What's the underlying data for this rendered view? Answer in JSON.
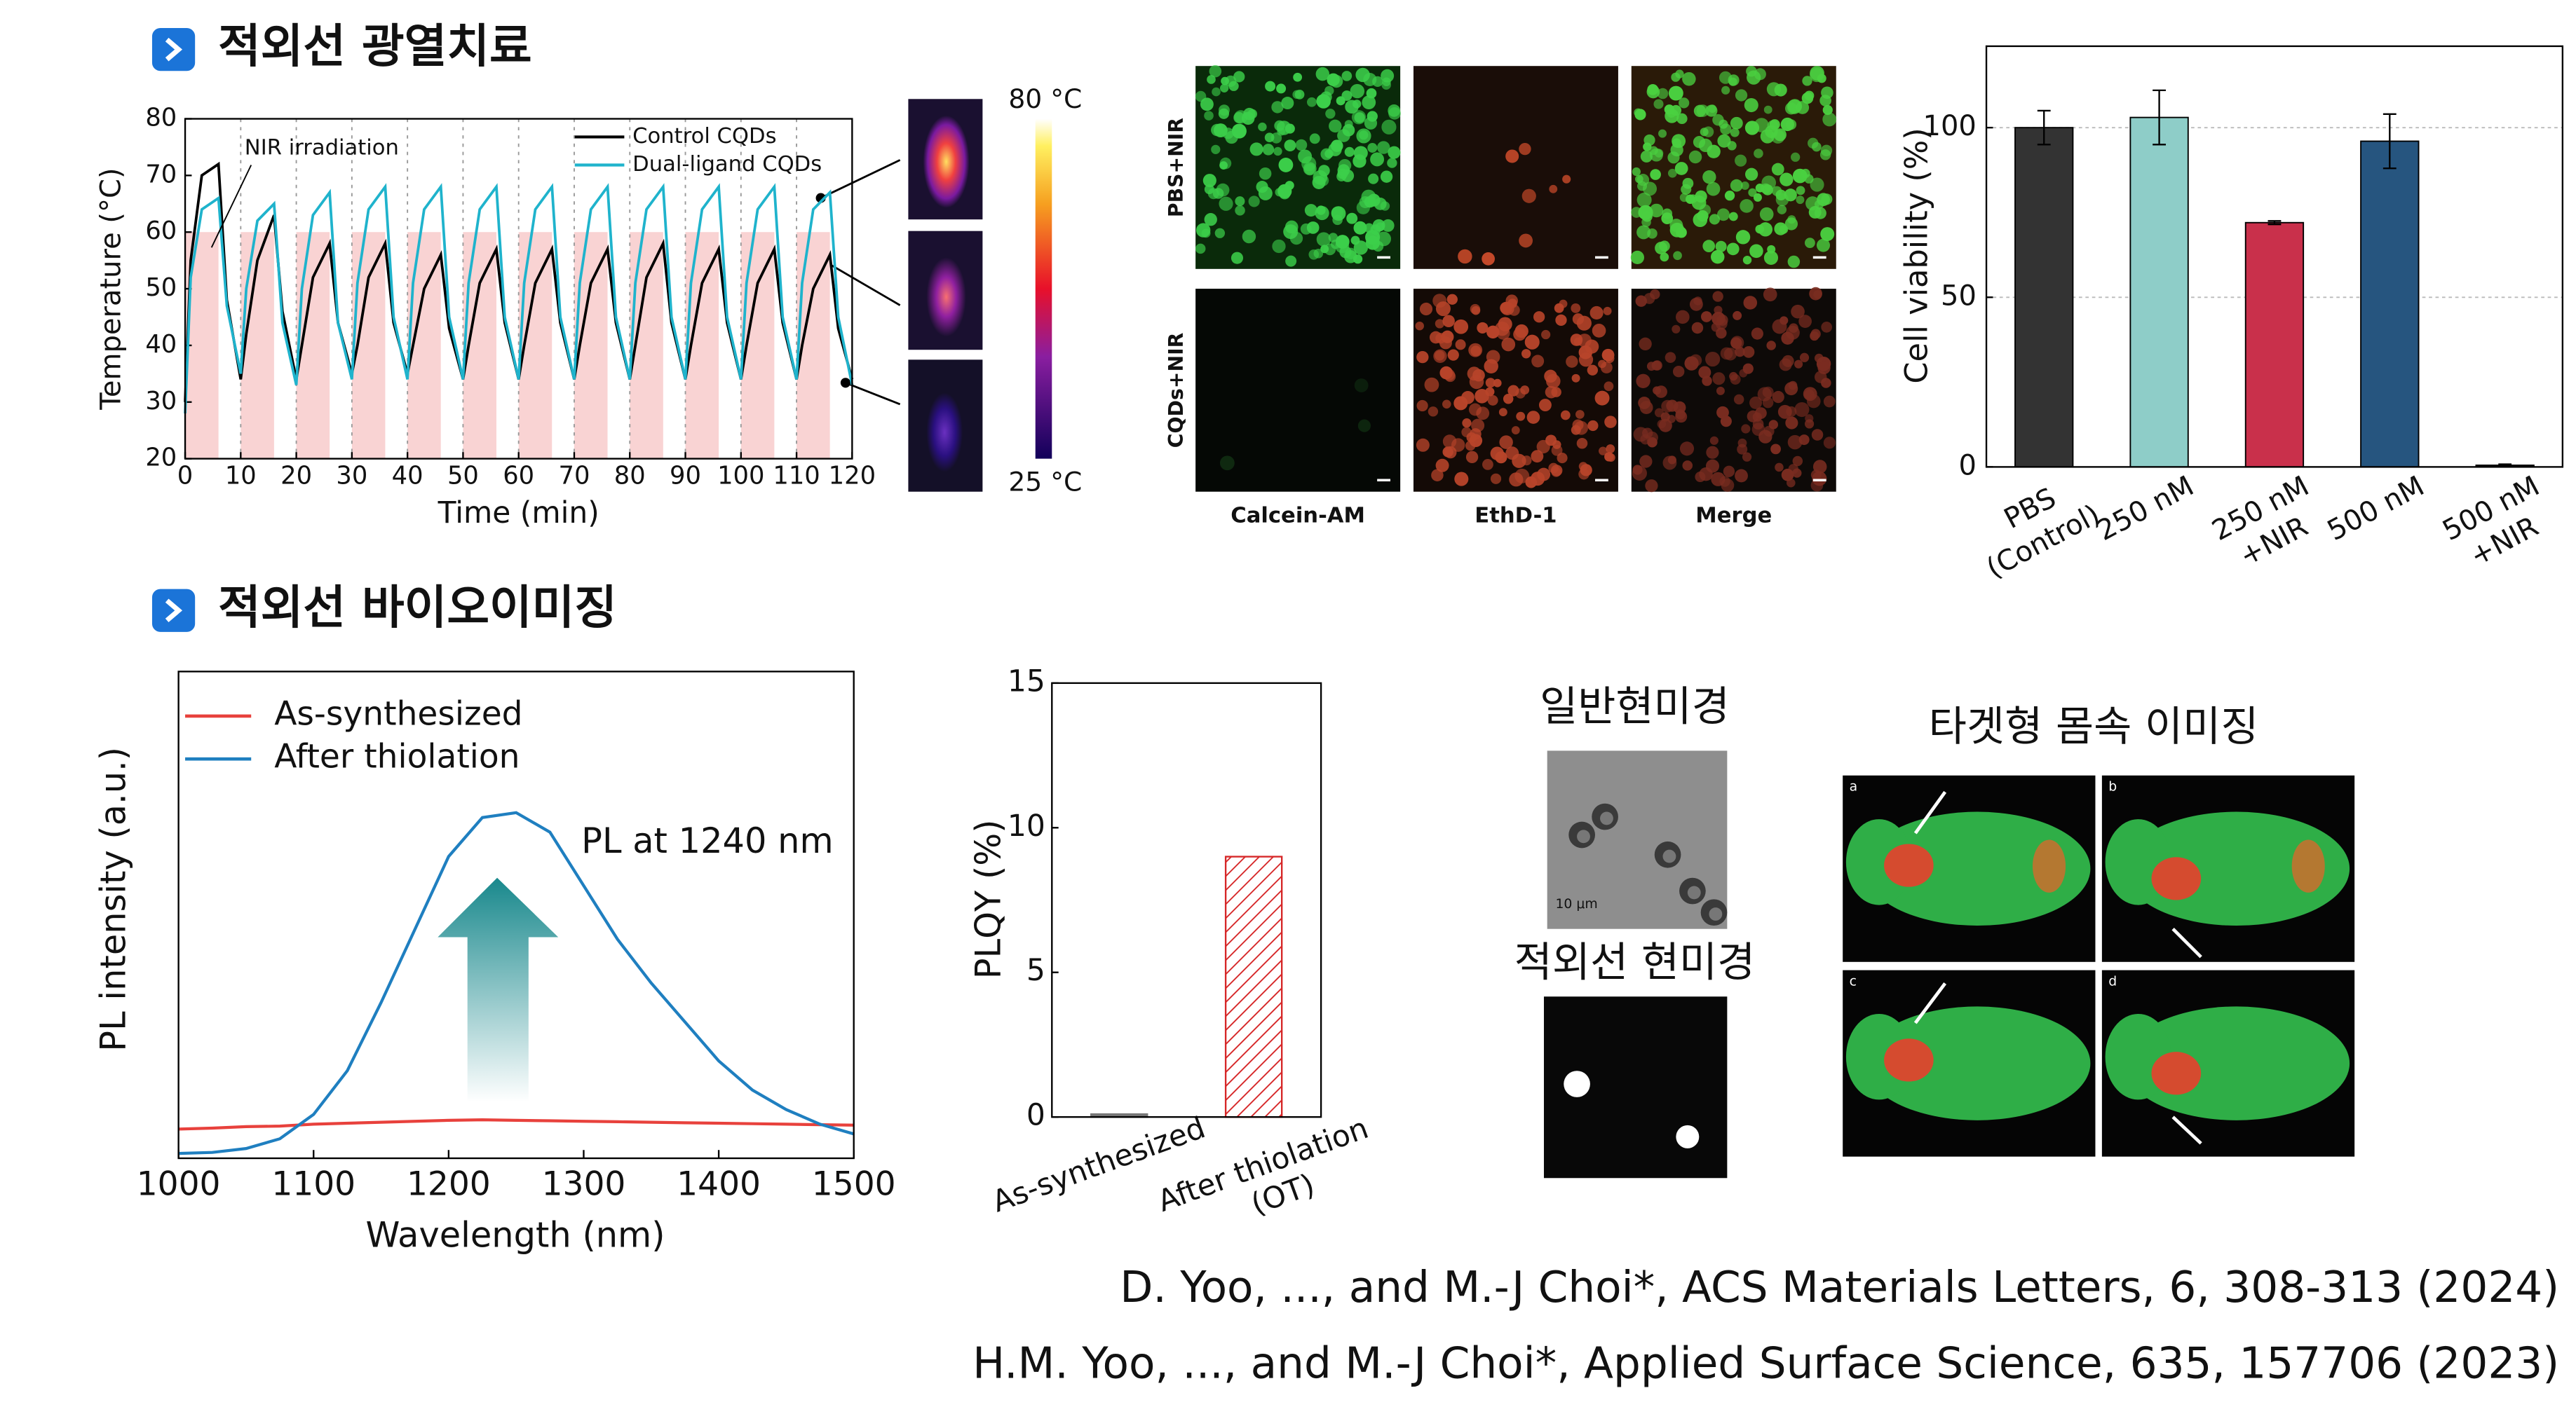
{
  "headers": [
    "적외선 광열치료",
    "적외선 바이오이미징"
  ],
  "thermal": {
    "max_label": "80 °C",
    "min_label": "25 °C"
  },
  "microscopy": {
    "rows": [
      "PBS+NIR",
      "CQDs+NIR"
    ],
    "columns": [
      "Calcein-AM",
      "EthD-1",
      "Merge"
    ]
  },
  "imaging": {
    "normal_title": "일반현미경",
    "ir_title": "적외선 현미경",
    "scale": "10 μm",
    "target_title": "타겟형 몸속 이미징",
    "panels": [
      "a",
      "b",
      "c",
      "d"
    ]
  },
  "citations": [
    "D. Yoo, ..., and M.-J Choi*, ACS Materials Letters, 6, 308-313 (2024)",
    "H.M. Yoo, ..., and M.-J Choi*, Applied Surface Science, 635, 157706 (2023)"
  ],
  "chart_data": [
    {
      "type": "line",
      "xlabel": "Time (min)",
      "ylabel": "Temperature (°C)",
      "annotation": "NIR irradiation",
      "xlim": [
        0,
        120
      ],
      "ylim": [
        20,
        80
      ],
      "xticks": [
        0,
        10,
        20,
        30,
        40,
        50,
        60,
        70,
        80,
        90,
        100,
        110,
        120
      ],
      "yticks": [
        20,
        30,
        40,
        50,
        60,
        70,
        80
      ],
      "grid": "x",
      "legend": "top-right",
      "nir_band": {
        "ylim": [
          20,
          60
        ],
        "intervals": [
          [
            0,
            6
          ],
          [
            10,
            16
          ],
          [
            20,
            26
          ],
          [
            30,
            36
          ],
          [
            40,
            46
          ],
          [
            50,
            56
          ],
          [
            60,
            66
          ],
          [
            70,
            76
          ],
          [
            80,
            86
          ],
          [
            90,
            96
          ],
          [
            100,
            106
          ],
          [
            110,
            116
          ]
        ],
        "color": "#f9d3d3"
      },
      "x": [
        0,
        1,
        3,
        6,
        7.5,
        10,
        11,
        13,
        16,
        17.5,
        20,
        21,
        23,
        26,
        27.5,
        30,
        31,
        33,
        36,
        37.5,
        40,
        41,
        43,
        46,
        47.5,
        50,
        51,
        53,
        56,
        57.5,
        60,
        61,
        63,
        66,
        67.5,
        70,
        71,
        73,
        76,
        77.5,
        80,
        81,
        83,
        86,
        87.5,
        90,
        91,
        93,
        96,
        97.5,
        100,
        101,
        103,
        106,
        107.5,
        110,
        111,
        113,
        116,
        117.5,
        120
      ],
      "series": [
        {
          "name": "Control CQDs",
          "color": "#000000",
          "values": [
            30,
            55,
            70,
            72,
            48,
            34,
            42,
            55,
            63,
            46,
            34,
            40,
            52,
            58,
            44,
            35,
            40,
            52,
            58,
            44,
            35,
            40,
            50,
            56,
            43,
            34,
            40,
            51,
            57,
            44,
            34,
            40,
            51,
            57,
            44,
            34,
            40,
            51,
            57,
            44,
            34,
            40,
            52,
            58,
            44,
            34,
            40,
            51,
            57,
            44,
            34,
            40,
            51,
            57,
            44,
            34,
            40,
            50,
            56,
            43,
            34
          ]
        },
        {
          "name": "Dual-ligand CQDs",
          "color": "#1fb3cc",
          "values": [
            28,
            52,
            64,
            66,
            47,
            35,
            50,
            62,
            65,
            44,
            33,
            50,
            63,
            67,
            44,
            34,
            51,
            64,
            68,
            45,
            34,
            51,
            64,
            68,
            45,
            34,
            51,
            64,
            68,
            45,
            34,
            51,
            64,
            68,
            45,
            34,
            51,
            64,
            68,
            45,
            34,
            51,
            64,
            68,
            45,
            34,
            51,
            64,
            68,
            45,
            34,
            51,
            64,
            68,
            45,
            34,
            51,
            64,
            67,
            45,
            33
          ]
        }
      ]
    },
    {
      "type": "bar",
      "ylabel": "Cell viability (%)",
      "categories": [
        [
          "PBS",
          "(Control)"
        ],
        [
          "250 nM"
        ],
        [
          "250 nM",
          "+NIR"
        ],
        [
          "500 nM"
        ],
        [
          "500 nM",
          "+NIR"
        ]
      ],
      "values": [
        100,
        103,
        72,
        96,
        0.5
      ],
      "errors": [
        5,
        8,
        0.5,
        8,
        0.3
      ],
      "colors": [
        "#333333",
        "#8ecdc8",
        "#c9304b",
        "#26557f",
        "#333333"
      ],
      "ylim": [
        0,
        124
      ],
      "yticks": [
        0,
        50,
        100
      ],
      "grid": true
    },
    {
      "type": "line",
      "xlabel": "Wavelength (nm)",
      "ylabel": "PL intensity (a.u.)",
      "annotation": "PL at 1240 nm",
      "legend": "top-left",
      "xlim": [
        1000,
        1500
      ],
      "ylim": [
        0,
        1
      ],
      "xticks": [
        1000,
        1100,
        1200,
        1300,
        1400,
        1500
      ],
      "x": [
        1000,
        1025,
        1050,
        1075,
        1100,
        1125,
        1150,
        1175,
        1200,
        1225,
        1250,
        1275,
        1300,
        1325,
        1350,
        1375,
        1400,
        1425,
        1450,
        1475,
        1500
      ],
      "series": [
        {
          "name": "As-synthesized",
          "color": "#e8413c",
          "values": [
            0.06,
            0.062,
            0.065,
            0.066,
            0.07,
            0.072,
            0.074,
            0.076,
            0.078,
            0.079,
            0.078,
            0.077,
            0.076,
            0.075,
            0.074,
            0.073,
            0.072,
            0.071,
            0.07,
            0.069,
            0.068
          ]
        },
        {
          "name": "After thiolation",
          "color": "#1f7fc0",
          "values": [
            0.01,
            0.012,
            0.02,
            0.04,
            0.09,
            0.18,
            0.32,
            0.47,
            0.62,
            0.7,
            0.71,
            0.67,
            0.56,
            0.45,
            0.36,
            0.28,
            0.2,
            0.14,
            0.1,
            0.07,
            0.05
          ]
        }
      ]
    },
    {
      "type": "bar",
      "ylabel": "PLQY (%)",
      "categories": [
        [
          "As-synthesized"
        ],
        [
          "After thiolation",
          "(OT)"
        ]
      ],
      "values": [
        0.1,
        9
      ],
      "colors": [
        "#777777",
        "#d62728"
      ],
      "hatch": [
        false,
        true
      ],
      "ylim": [
        0,
        15
      ],
      "yticks": [
        0,
        5,
        10,
        15
      ]
    }
  ]
}
